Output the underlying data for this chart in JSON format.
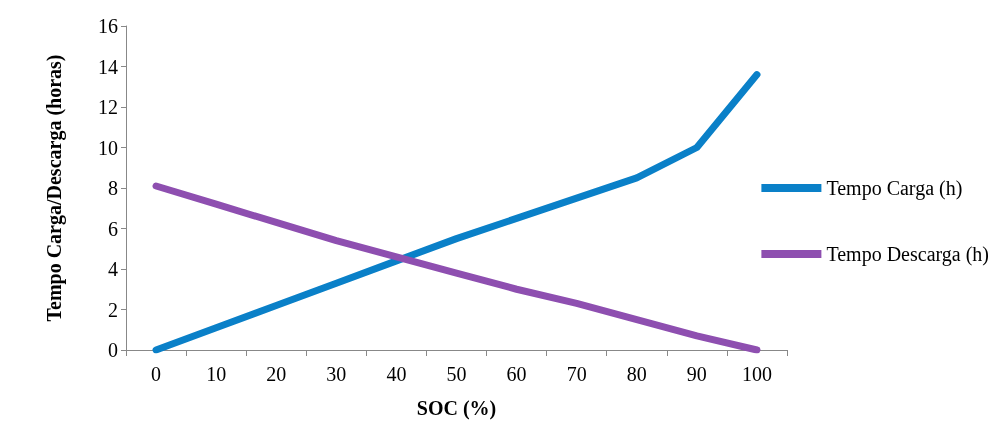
{
  "chart_data": {
    "type": "line",
    "xlabel": "SOC (%)",
    "ylabel": "Tempo Carga/Descarga (horas)",
    "categories": [
      "0",
      "10",
      "20",
      "30",
      "40",
      "50",
      "60",
      "70",
      "80",
      "90",
      "100"
    ],
    "series": [
      {
        "name": "Tempo Carga (h)",
        "color": "#0a80c8",
        "values": [
          0,
          1.1,
          2.2,
          3.3,
          4.4,
          5.5,
          6.5,
          7.5,
          8.5,
          10,
          13.6
        ]
      },
      {
        "name": "Tempo Descarga (h)",
        "color": "#8e4fb0",
        "values": [
          8.1,
          7.2,
          6.3,
          5.4,
          4.6,
          3.8,
          3.0,
          2.3,
          1.5,
          0.7,
          0
        ]
      }
    ],
    "ylim": [
      0,
      16
    ],
    "yticks": [
      0,
      2,
      4,
      6,
      8,
      10,
      12,
      14,
      16
    ],
    "grid": false,
    "legend": "right",
    "marker": "none",
    "line_style": "solid"
  }
}
